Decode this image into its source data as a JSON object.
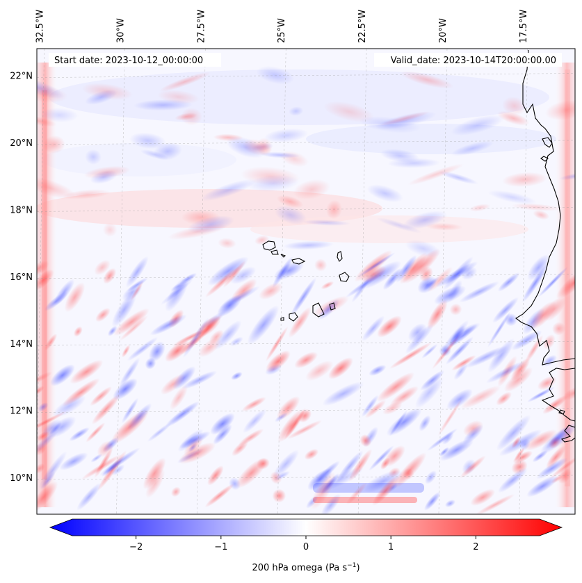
{
  "map": {
    "start_date": "Start date: 2023-10-12_00:00:00",
    "valid_date": "Valid_date: 2023-10-14T20:00:00.00",
    "lon_ticks": [
      {
        "lon": -32.5,
        "label": "32.5°W"
      },
      {
        "lon": -30,
        "label": "30°W"
      },
      {
        "lon": -27.5,
        "label": "27.5°W"
      },
      {
        "lon": -25,
        "label": "25°W"
      },
      {
        "lon": -22.5,
        "label": "22.5°W"
      },
      {
        "lon": -20,
        "label": "20°W"
      },
      {
        "lon": -17.5,
        "label": "17.5°W"
      }
    ],
    "lat_ticks": [
      {
        "lat": 22,
        "label": "22°N"
      },
      {
        "lat": 20,
        "label": "20°N"
      },
      {
        "lat": 18,
        "label": "18°N"
      },
      {
        "lat": 16,
        "label": "16°N"
      },
      {
        "lat": 14,
        "label": "14°N"
      },
      {
        "lat": 12,
        "label": "12°N"
      },
      {
        "lat": 10,
        "label": "10°N"
      }
    ],
    "lon_range": [
      -32.6,
      -15.9
    ],
    "lat_range": [
      8.9,
      22.8
    ],
    "gridlines": true
  },
  "colorbar": {
    "label": "200 hPa omega (Pa s",
    "label_sup": "−1",
    "label_end": ")",
    "range": [
      -2.75,
      2.75
    ],
    "extend": "both",
    "ticks": [
      {
        "value": -2,
        "label": "−2"
      },
      {
        "value": -1,
        "label": "−1"
      },
      {
        "value": 0,
        "label": "0"
      },
      {
        "value": 1,
        "label": "1"
      },
      {
        "value": 2,
        "label": "2"
      }
    ],
    "color_min": "#0000ff",
    "color_mid": "#ffffff",
    "color_max": "#ff0000"
  }
}
